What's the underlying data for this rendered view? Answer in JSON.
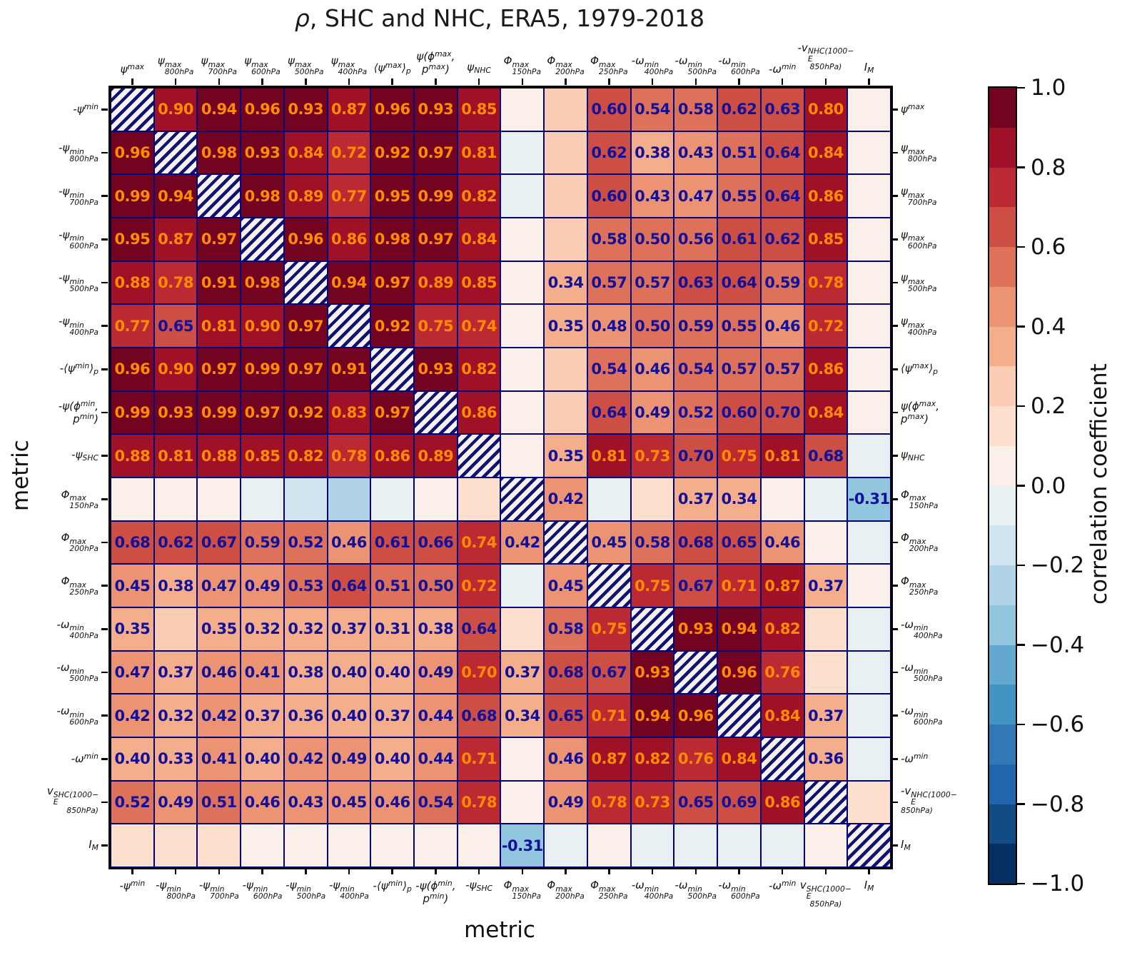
{
  "chart_data": {
    "type": "heatmap",
    "title_symbol": "ρ",
    "title_rest": ", SHC and NHC, ERA5, 1979-2018",
    "x_axis": {
      "label": "metric",
      "top_ticklabels": [
        "ψ^{max}",
        "ψ^{max}_{800hPa}",
        "ψ^{max}_{700hPa}",
        "ψ^{max}_{600hPa}",
        "ψ^{max}_{500hPa}",
        "ψ^{max}_{400hPa}",
        "⟨ψ^{max}⟩_{p}",
        [
          "ψ(ϕ^{max},",
          "p^{max})"
        ],
        "ψ_{NHC}",
        "Φ^{max}_{150hPa}",
        "Φ^{max}_{200hPa}",
        "Φ^{max}_{250hPa}",
        "-ω^{min}_{400hPa}",
        "-ω^{min}_{500hPa}",
        "-ω^{min}_{600hPa}",
        "-ω^{min}",
        [
          "-v_{E}^{NHC(1000−}",
          "^{850hPa)}"
        ],
        "I_{M}"
      ],
      "bottom_ticklabels": [
        "-ψ^{min}",
        "-ψ^{min}_{800hPa}",
        "-ψ^{min}_{700hPa}",
        "-ψ^{min}_{600hPa}",
        "-ψ^{min}_{500hPa}",
        "-ψ^{min}_{400hPa}",
        "-⟨ψ^{min}⟩_{p}",
        [
          "-ψ(ϕ^{min},",
          "p^{min})"
        ],
        "-ψ_{SHC}",
        "Φ^{max}_{150hPa}",
        "Φ^{max}_{200hPa}",
        "Φ^{max}_{250hPa}",
        "-ω^{min}_{400hPa}",
        "-ω^{min}_{500hPa}",
        "-ω^{min}_{600hPa}",
        "-ω^{min}",
        [
          "v_{E}^{SHC(1000−}",
          "^{850hPa)}"
        ],
        "I_{M}"
      ]
    },
    "y_axis": {
      "label": "metric",
      "left_ticklabels": [
        "-ψ^{min}",
        "-ψ^{min}_{800hPa}",
        "-ψ^{min}_{700hPa}",
        "-ψ^{min}_{600hPa}",
        "-ψ^{min}_{500hPa}",
        "-ψ^{min}_{400hPa}",
        "-⟨ψ^{min}⟩_{p}",
        [
          "-ψ(ϕ^{min},",
          "p^{min})"
        ],
        "-ψ_{SHC}",
        "Φ^{max}_{150hPa}",
        "Φ^{max}_{200hPa}",
        "Φ^{max}_{250hPa}",
        "-ω^{min}_{400hPa}",
        "-ω^{min}_{500hPa}",
        "-ω^{min}_{600hPa}",
        "-ω^{min}",
        [
          "v_{E}^{SHC(1000−}",
          "^{850hPa)}"
        ],
        "I_{M}"
      ],
      "right_ticklabels": [
        "ψ^{max}",
        "ψ^{max}_{800hPa}",
        "ψ^{max}_{700hPa}",
        "ψ^{max}_{600hPa}",
        "ψ^{max}_{500hPa}",
        "ψ^{max}_{400hPa}",
        "⟨ψ^{max}⟩_{p}",
        [
          "ψ(ϕ^{max},",
          "p^{max})"
        ],
        "ψ_{NHC}",
        "Φ^{max}_{150hPa}",
        "Φ^{max}_{200hPa}",
        "Φ^{max}_{250hPa}",
        "-ω^{min}_{400hPa}",
        "-ω^{min}_{500hPa}",
        "-ω^{min}_{600hPa}",
        "-ω^{min}",
        [
          "-v_{E}^{NHC(1000−}",
          "^{850hPa)}"
        ],
        "I_{M}"
      ]
    },
    "matrix": [
      [
        null,
        0.9,
        0.94,
        0.96,
        0.93,
        0.87,
        0.96,
        0.93,
        0.85,
        0.05,
        0.22,
        0.6,
        0.54,
        0.58,
        0.62,
        0.63,
        0.8,
        0.05
      ],
      [
        0.96,
        null,
        0.98,
        0.93,
        0.84,
        0.72,
        0.92,
        0.97,
        0.81,
        -0.05,
        0.25,
        0.62,
        0.38,
        0.43,
        0.51,
        0.64,
        0.84,
        0.05
      ],
      [
        0.99,
        0.94,
        null,
        0.98,
        0.89,
        0.77,
        0.95,
        0.99,
        0.82,
        -0.05,
        0.25,
        0.6,
        0.43,
        0.47,
        0.55,
        0.64,
        0.86,
        0.05
      ],
      [
        0.95,
        0.87,
        0.97,
        null,
        0.96,
        0.86,
        0.98,
        0.97,
        0.84,
        0.05,
        0.25,
        0.58,
        0.5,
        0.56,
        0.61,
        0.62,
        0.85,
        0.05
      ],
      [
        0.88,
        0.78,
        0.91,
        0.98,
        null,
        0.94,
        0.97,
        0.89,
        0.85,
        0.08,
        0.34,
        0.57,
        0.57,
        0.63,
        0.64,
        0.59,
        0.78,
        0.05
      ],
      [
        0.77,
        0.65,
        0.81,
        0.9,
        0.97,
        null,
        0.92,
        0.75,
        0.74,
        0.05,
        0.35,
        0.48,
        0.5,
        0.59,
        0.55,
        0.46,
        0.72,
        0.05
      ],
      [
        0.96,
        0.9,
        0.97,
        0.99,
        0.97,
        0.91,
        null,
        0.93,
        0.82,
        0.08,
        0.22,
        0.54,
        0.46,
        0.54,
        0.57,
        0.57,
        0.86,
        0.05
      ],
      [
        0.99,
        0.93,
        0.99,
        0.97,
        0.92,
        0.83,
        0.97,
        null,
        0.86,
        0.05,
        0.22,
        0.64,
        0.49,
        0.52,
        0.6,
        0.698,
        0.84,
        0.05
      ],
      [
        0.88,
        0.81,
        0.88,
        0.85,
        0.82,
        0.78,
        0.86,
        0.89,
        null,
        0.05,
        0.35,
        0.81,
        0.73,
        0.698,
        0.75,
        0.81,
        0.68,
        -0.05
      ],
      [
        0.08,
        0.08,
        0.08,
        -0.08,
        -0.15,
        -0.22,
        -0.1,
        0.05,
        0.15,
        null,
        0.42,
        -0.08,
        0.15,
        0.37,
        0.34,
        0.05,
        -0.05,
        -0.31
      ],
      [
        0.68,
        0.62,
        0.67,
        0.59,
        0.52,
        0.46,
        0.61,
        0.66,
        0.74,
        0.42,
        null,
        0.45,
        0.58,
        0.68,
        0.65,
        0.46,
        0.08,
        -0.05
      ],
      [
        0.45,
        0.38,
        0.47,
        0.49,
        0.53,
        0.64,
        0.51,
        0.5,
        0.72,
        -0.1,
        0.45,
        null,
        0.75,
        0.67,
        0.71,
        0.87,
        0.37,
        0.05
      ],
      [
        0.35,
        0.25,
        0.35,
        0.32,
        0.32,
        0.37,
        0.31,
        0.38,
        0.64,
        0.15,
        0.58,
        0.75,
        null,
        0.93,
        0.94,
        0.82,
        0.15,
        -0.08
      ],
      [
        0.47,
        0.37,
        0.46,
        0.41,
        0.38,
        0.4,
        0.4,
        0.49,
        0.704,
        0.37,
        0.68,
        0.67,
        0.93,
        null,
        0.96,
        0.76,
        0.15,
        -0.08
      ],
      [
        0.42,
        0.32,
        0.42,
        0.37,
        0.36,
        0.4,
        0.37,
        0.44,
        0.68,
        0.34,
        0.65,
        0.71,
        0.94,
        0.96,
        null,
        0.84,
        0.37,
        -0.08
      ],
      [
        0.4,
        0.33,
        0.41,
        0.4,
        0.42,
        0.49,
        0.4,
        0.44,
        0.71,
        0.05,
        0.46,
        0.87,
        0.82,
        0.76,
        0.84,
        null,
        0.36,
        -0.08
      ],
      [
        0.52,
        0.49,
        0.51,
        0.46,
        0.43,
        0.45,
        0.46,
        0.54,
        0.78,
        0.05,
        0.49,
        0.78,
        0.73,
        0.65,
        0.69,
        0.86,
        null,
        0.1
      ],
      [
        0.18,
        0.18,
        0.18,
        0.08,
        0.08,
        0.08,
        0.08,
        0.08,
        0.08,
        -0.31,
        -0.05,
        0.05,
        -0.08,
        -0.08,
        -0.08,
        -0.08,
        0.08,
        null
      ]
    ],
    "annotation_rule": {
      "show_if_abs_greater_than": 0.3,
      "high_color_if_greater_than": 0.7
    },
    "annotation_colors": {
      "high": "#ff8c00",
      "low": "#10109a"
    },
    "grid_color": "#000080",
    "hatch_colors": {
      "stripe": "#0c1272",
      "background": "#f9f1ec"
    },
    "colorbar": {
      "label": "correlation coefficient",
      "ticklabels": [
        "1.0",
        "0.8",
        "0.6",
        "0.4",
        "0.2",
        "0.0",
        "−0.2",
        "−0.4",
        "−0.6",
        "−0.8",
        "−1.0"
      ],
      "range": [
        -1.0,
        1.0
      ],
      "n_levels": 20,
      "levels_colors_low_to_high": [
        "#053061",
        "#134c85",
        "#2166ac",
        "#3079b6",
        "#4393c3",
        "#64a8cf",
        "#92c5de",
        "#b0d3e7",
        "#d1e5f0",
        "#e8f0f4",
        "#faf0e9",
        "#fcdfcd",
        "#fbccb4",
        "#f5ae8b",
        "#ec9373",
        "#dd715a",
        "#cd4e44",
        "#bb2a33",
        "#9e1126",
        "#730421"
      ]
    }
  }
}
